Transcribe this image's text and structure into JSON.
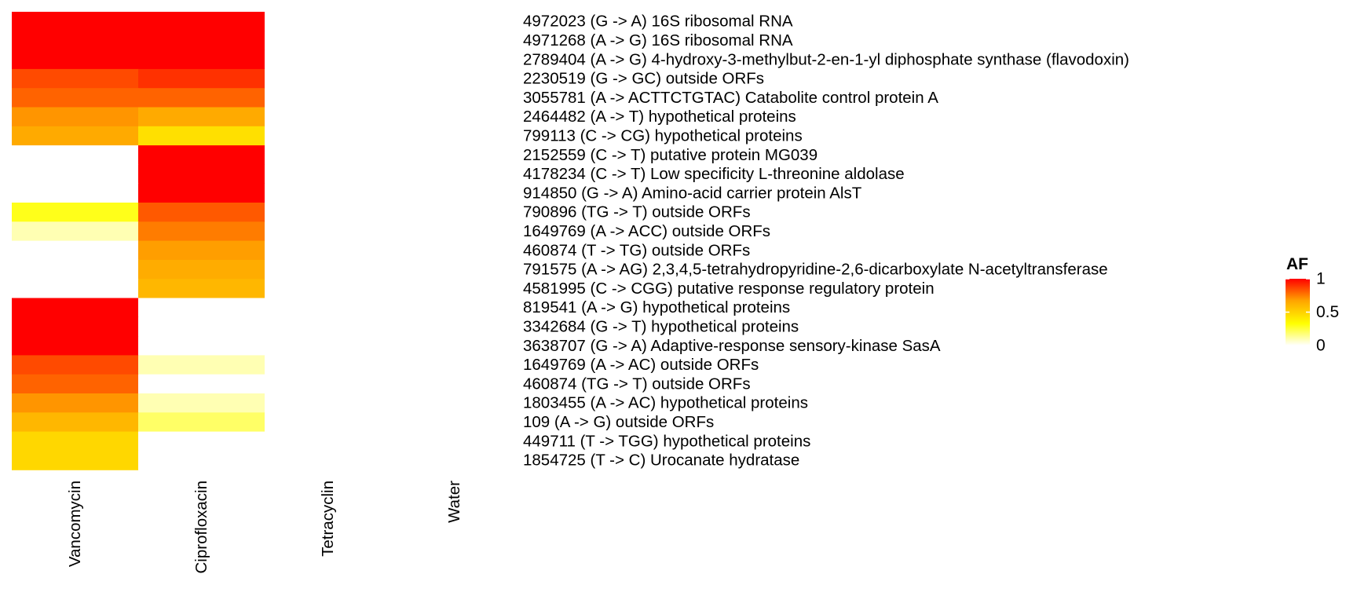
{
  "chart_data": {
    "type": "heatmap",
    "title": "",
    "xlabel": "",
    "ylabel": "",
    "columns": [
      "Vancomycin",
      "Ciprofloxacin",
      "Tetracyclin",
      "Water"
    ],
    "rows": [
      "4972023 (G -> A) 16S ribosomal RNA",
      "4971268 (A -> G) 16S ribosomal RNA",
      "2789404 (A -> G) 4-hydroxy-3-methylbut-2-en-1-yl diphosphate synthase (flavodoxin)",
      "2230519 (G -> GC) outside ORFs",
      "3055781 (A -> ACTTCTGTAC) Catabolite control protein A",
      "2464482 (A -> T) hypothetical proteins",
      "799113 (C -> CG) hypothetical proteins",
      "2152559 (C -> T) putative protein MG039",
      "4178234 (C -> T) Low specificity L-threonine aldolase",
      "914850 (G -> A) Amino-acid carrier protein AlsT",
      "790896 (TG -> T) outside ORFs",
      "1649769 (A -> ACC) outside ORFs",
      "460874 (T -> TG) outside ORFs",
      "791575 (A -> AG) 2,3,4,5-tetrahydropyridine-2,6-dicarboxylate N-acetyltransferase",
      "4581995 (C -> CGG) putative response regulatory protein",
      "819541 (A -> G) hypothetical proteins",
      "3342684 (G -> T) hypothetical proteins",
      "3638707 (G -> A) Adaptive-response sensory-kinase SasA",
      "1649769 (A -> AC) outside ORFs",
      "460874 (TG -> T) outside ORFs",
      "1803455 (A -> AC) hypothetical proteins",
      "109 (A -> G) outside ORFs",
      "449711 (T -> TGG) hypothetical proteins",
      "1854725 (T -> C) Urocanate hydratase"
    ],
    "values": [
      [
        1.0,
        1.0,
        0,
        0
      ],
      [
        1.0,
        1.0,
        0,
        0
      ],
      [
        1.0,
        1.0,
        0,
        0
      ],
      [
        0.85,
        0.9,
        0,
        0
      ],
      [
        0.8,
        0.8,
        0,
        0
      ],
      [
        0.7,
        0.65,
        0,
        0
      ],
      [
        0.65,
        0.45,
        0,
        0
      ],
      [
        0,
        1.0,
        0,
        0
      ],
      [
        0,
        1.0,
        0,
        0
      ],
      [
        0,
        1.0,
        0,
        0
      ],
      [
        0.3,
        0.82,
        0,
        0
      ],
      [
        0.1,
        0.75,
        0,
        0
      ],
      [
        0,
        0.68,
        0,
        0
      ],
      [
        0,
        0.64,
        0,
        0
      ],
      [
        0,
        0.6,
        0,
        0
      ],
      [
        1.0,
        0,
        0,
        0
      ],
      [
        1.0,
        0,
        0,
        0
      ],
      [
        1.0,
        0,
        0,
        0
      ],
      [
        0.85,
        0.1,
        0,
        0
      ],
      [
        0.8,
        0,
        0,
        0
      ],
      [
        0.7,
        0.1,
        0,
        0
      ],
      [
        0.6,
        0.2,
        0,
        0
      ],
      [
        0.48,
        0,
        0,
        0
      ],
      [
        0.48,
        0,
        0,
        0
      ]
    ],
    "legend": {
      "title": "AF",
      "ticks": [
        "1",
        "0.5",
        "0"
      ],
      "tick_values": [
        1,
        0.5,
        0
      ],
      "placement": "right"
    },
    "color_scale": {
      "min": 0,
      "max": 1,
      "stops": [
        "#ffffff",
        "#ffff00",
        "#ffa500",
        "#ff0000"
      ]
    },
    "range": [
      0,
      1
    ],
    "grid": false
  }
}
